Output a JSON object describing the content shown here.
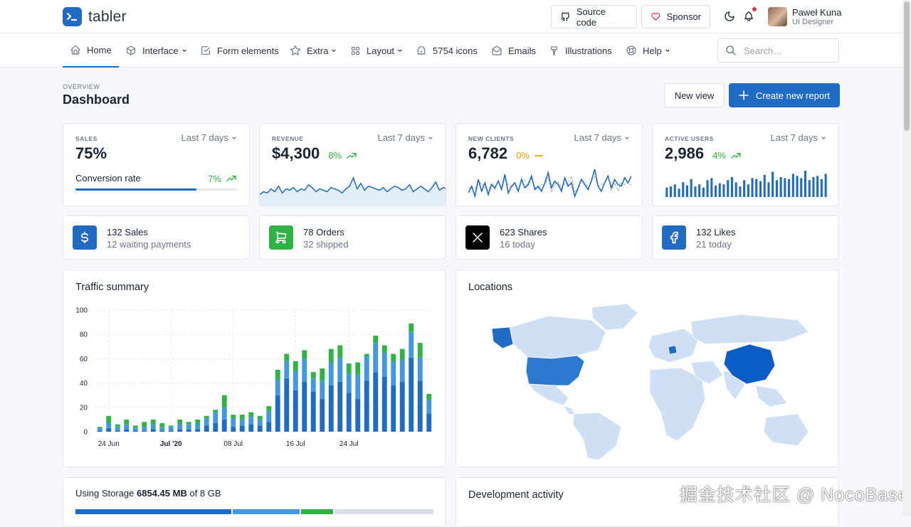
{
  "brand": {
    "name": "tabler",
    "accent": "#206bc4"
  },
  "topbar": {
    "source_code": "Source code",
    "sponsor": "Sponsor",
    "user_name": "Paweł Kuna",
    "user_role": "UI Designer"
  },
  "nav": {
    "items": [
      {
        "label": "Home",
        "icon": "home-icon",
        "active": true
      },
      {
        "label": "Interface",
        "icon": "package-icon",
        "dropdown": true
      },
      {
        "label": "Form elements",
        "icon": "checkbox-icon"
      },
      {
        "label": "Extra",
        "icon": "star-icon",
        "dropdown": true
      },
      {
        "label": "Layout",
        "icon": "layout-icon",
        "dropdown": true
      },
      {
        "label": "5754 icons",
        "icon": "ghost-icon"
      },
      {
        "label": "Emails",
        "icon": "mail-icon"
      },
      {
        "label": "Illustrations",
        "icon": "brush-icon"
      },
      {
        "label": "Help",
        "icon": "lifebuoy-icon",
        "dropdown": true
      }
    ],
    "search_placeholder": "Search…"
  },
  "page": {
    "pretitle": "OVERVIEW",
    "title": "Dashboard",
    "new_view": "New view",
    "create_report": "Create new report"
  },
  "stats": [
    {
      "label": "SALES",
      "period": "Last 7 days",
      "value": "75%",
      "conversion_label": "Conversion rate",
      "conversion_change": "7%",
      "progress": 0.75
    },
    {
      "label": "REVENUE",
      "period": "Last 7 days",
      "value": "$4,300",
      "change": "8%",
      "trend": "up"
    },
    {
      "label": "NEW CLIENTS",
      "period": "Last 7 days",
      "value": "6,782",
      "change": "0%",
      "trend": "flat"
    },
    {
      "label": "ACTIVE USERS",
      "period": "Last 7 days",
      "value": "2,986",
      "change": "4%",
      "trend": "up"
    }
  ],
  "minis": [
    {
      "title": "132 Sales",
      "sub": "12 waiting payments",
      "color": "#206bc4",
      "icon": "dollar-icon"
    },
    {
      "title": "78 Orders",
      "sub": "32 shipped",
      "color": "#2fb344",
      "icon": "cart-icon"
    },
    {
      "title": "623 Shares",
      "sub": "16 today",
      "color": "#000000",
      "icon": "x-logo-icon"
    },
    {
      "title": "132 Likes",
      "sub": "21 today",
      "color": "#206bc4",
      "icon": "facebook-icon"
    }
  ],
  "traffic": {
    "title": "Traffic summary"
  },
  "locations": {
    "title": "Locations"
  },
  "storage": {
    "prefix": "Using Storage",
    "used": "6854.45 MB",
    "suffix": "of 8 GB",
    "segments": [
      {
        "fraction": 0.44,
        "color": "#206bc4"
      },
      {
        "fraction": 0.19,
        "color": "#4299e1"
      },
      {
        "fraction": 0.09,
        "color": "#2fb344"
      },
      {
        "fraction": 0.28,
        "color": "#dadfe5"
      }
    ]
  },
  "dev_activity": {
    "title": "Development activity"
  },
  "watermark": "掘金技术社区 @ NocoBase",
  "chart_data": [
    {
      "type": "area",
      "title": "",
      "values": [
        8,
        10,
        9,
        12,
        10,
        14,
        9,
        12,
        11,
        13,
        10,
        12,
        11,
        15,
        13,
        10,
        12,
        11,
        10,
        13,
        12,
        11,
        9,
        12,
        14,
        20,
        12,
        16,
        11,
        14,
        13,
        12,
        11,
        13,
        10,
        12,
        14,
        13,
        11,
        12,
        15,
        10,
        12,
        14,
        12,
        10,
        13,
        17,
        11,
        13,
        12
      ]
    },
    {
      "type": "line",
      "title": "",
      "values": [
        14,
        18,
        12,
        22,
        15,
        20,
        13,
        19,
        17,
        21,
        16,
        25,
        14,
        18,
        20,
        15,
        22,
        17,
        19,
        24,
        16,
        18,
        15,
        20,
        26,
        17,
        21,
        19,
        15,
        23,
        18,
        20,
        12,
        17,
        22,
        19,
        16,
        21,
        28,
        18,
        15,
        20,
        24,
        17,
        22,
        19,
        18,
        23,
        20,
        24
      ]
    },
    {
      "type": "bar",
      "title": "",
      "values": [
        9,
        10,
        12,
        8,
        14,
        11,
        17,
        10,
        12,
        9,
        16,
        18,
        11,
        13,
        12,
        16,
        19,
        14,
        10,
        16,
        12,
        18,
        17,
        15,
        21,
        14,
        24,
        16,
        19,
        18,
        17,
        22,
        20,
        18,
        25,
        16,
        19,
        20,
        17,
        22
      ]
    },
    {
      "type": "bar",
      "title": "",
      "stacked": true,
      "ylim": [
        0,
        100
      ],
      "yticks": [
        0,
        20,
        40,
        60,
        80,
        100
      ],
      "xtick_labels": [
        {
          "index": 1,
          "label": "24 Jun"
        },
        {
          "index": 8,
          "label": "Jul '20",
          "bold": true
        },
        {
          "index": 15,
          "label": "08 Jul"
        },
        {
          "index": 22,
          "label": "16 Jul"
        },
        {
          "index": 28,
          "label": "24 Jul"
        }
      ],
      "series": [
        {
          "color": "#206bc4",
          "values": [
            1,
            3,
            1,
            2,
            1,
            1,
            2,
            1,
            1,
            2,
            2,
            2,
            5,
            7,
            10,
            4,
            5,
            6,
            5,
            8,
            30,
            44,
            34,
            41,
            33,
            27,
            38,
            41,
            32,
            27,
            42,
            49,
            45,
            38,
            41,
            61,
            42,
            15
          ]
        },
        {
          "color": "#4299e1",
          "values": [
            2,
            4,
            3,
            4,
            2,
            3,
            4,
            3,
            3,
            5,
            4,
            5,
            6,
            9,
            10,
            7,
            5,
            6,
            5,
            9,
            13,
            14,
            16,
            19,
            11,
            15,
            19,
            20,
            16,
            20,
            20,
            24,
            20,
            20,
            18,
            21,
            19,
            11
          ]
        },
        {
          "color": "#2fb344",
          "values": [
            1,
            6,
            2,
            4,
            2,
            4,
            4,
            3,
            1,
            3,
            2,
            3,
            2,
            2,
            10,
            3,
            4,
            4,
            3,
            4,
            8,
            6,
            8,
            7,
            5,
            10,
            11,
            10,
            8,
            10,
            2,
            6,
            6,
            6,
            9,
            7,
            12,
            5
          ]
        }
      ]
    }
  ]
}
